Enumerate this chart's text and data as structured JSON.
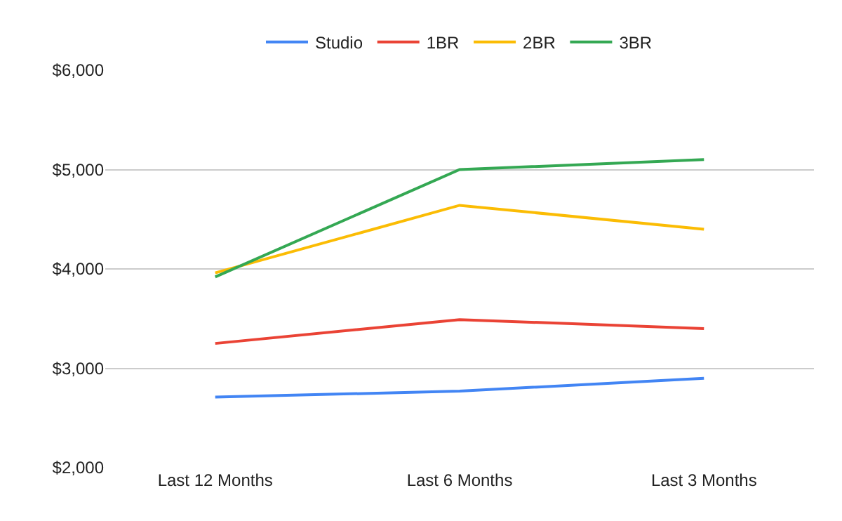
{
  "chart_data": {
    "type": "line",
    "categories": [
      "Last 12 Months",
      "Last 6 Months",
      "Last 3 Months"
    ],
    "series": [
      {
        "name": "Studio",
        "color": "#4285f4",
        "values": [
          2710,
          2770,
          2900
        ]
      },
      {
        "name": "1BR",
        "color": "#ea4335",
        "values": [
          3250,
          3490,
          3400
        ]
      },
      {
        "name": "2BR",
        "color": "#fbbc04",
        "values": [
          3960,
          4640,
          4400
        ]
      },
      {
        "name": "3BR",
        "color": "#34a853",
        "values": [
          3920,
          5000,
          5100
        ]
      }
    ],
    "ylim": [
      2000,
      6000
    ],
    "yticks": [
      {
        "value": 2000,
        "label": "$2,000"
      },
      {
        "value": 3000,
        "label": "$3,000"
      },
      {
        "value": 4000,
        "label": "$4,000"
      },
      {
        "value": 5000,
        "label": "$5,000"
      },
      {
        "value": 6000,
        "label": "$6,000"
      }
    ],
    "grid": "y",
    "legend": "top",
    "marker": "none",
    "line_style": "solid"
  }
}
